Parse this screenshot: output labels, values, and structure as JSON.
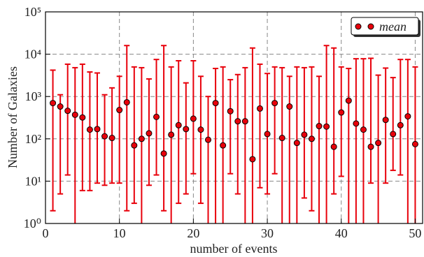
{
  "chart_data": {
    "type": "scatter",
    "x_label": "number of events",
    "y_label": "Number of Galaxies",
    "log_y": true,
    "grid": true,
    "legend": "upper right",
    "xlim": [
      0,
      51
    ],
    "xticks": [
      0,
      10,
      20,
      30,
      40,
      50
    ],
    "ylim": [
      1,
      100000
    ],
    "yticks": [
      {
        "value": 1,
        "label": "10⁰"
      },
      {
        "value": 10,
        "label": "10¹"
      },
      {
        "value": 100,
        "label": "10²"
      },
      {
        "value": 1000,
        "label": "10³"
      },
      {
        "value": 10000,
        "label": "10⁴"
      },
      {
        "value": 100000,
        "label": "10⁵"
      }
    ],
    "series": [
      {
        "name": "mean",
        "color": "#e8000b",
        "edge_color": "#000000",
        "x": [
          1,
          2,
          3,
          4,
          5,
          6,
          7,
          8,
          9,
          10,
          11,
          12,
          13,
          14,
          15,
          16,
          17,
          18,
          19,
          20,
          21,
          22,
          23,
          24,
          25,
          26,
          27,
          28,
          29,
          30,
          31,
          32,
          33,
          34,
          35,
          36,
          37,
          38,
          39,
          40,
          41,
          42,
          43,
          44,
          45,
          46,
          47,
          48,
          49,
          50
        ],
        "values": [
          700,
          580,
          460,
          370,
          320,
          165,
          170,
          115,
          105,
          480,
          730,
          70,
          100,
          135,
          330,
          45,
          125,
          210,
          170,
          300,
          165,
          95,
          700,
          70,
          450,
          260,
          260,
          33,
          520,
          130,
          700,
          105,
          580,
          80,
          125,
          100,
          200,
          195,
          65,
          420,
          800,
          230,
          165,
          65,
          80,
          280,
          130,
          210,
          340,
          75
        ],
        "lower": [
          2,
          5,
          14,
          0.1,
          6,
          6,
          9,
          8,
          9,
          9,
          2,
          3,
          0.1,
          8,
          14,
          2,
          0.1,
          3,
          5,
          15,
          3,
          0.1,
          0.1,
          0.1,
          15,
          5,
          0.1,
          0.1,
          7,
          5,
          15,
          0.1,
          0.1,
          0.1,
          4,
          2,
          0.1,
          0.1,
          5,
          13,
          0.1,
          0.1,
          0.1,
          9,
          0.1,
          9,
          18,
          14,
          0.1,
          0.1
        ],
        "upper": [
          4200,
          1100,
          5800,
          4800,
          5800,
          3800,
          3600,
          1100,
          1600,
          3000,
          16000,
          5000,
          4800,
          2600,
          7500,
          16000,
          5000,
          7000,
          2100,
          7000,
          3000,
          1000,
          4600,
          5000,
          2500,
          3300,
          4800,
          14000,
          5800,
          3500,
          5000,
          4800,
          3000,
          5000,
          4800,
          5000,
          3000,
          16000,
          14000,
          5000,
          4600,
          7800,
          7800,
          8000,
          3200,
          4700,
          2800,
          7500,
          7500,
          5000
        ]
      }
    ]
  }
}
